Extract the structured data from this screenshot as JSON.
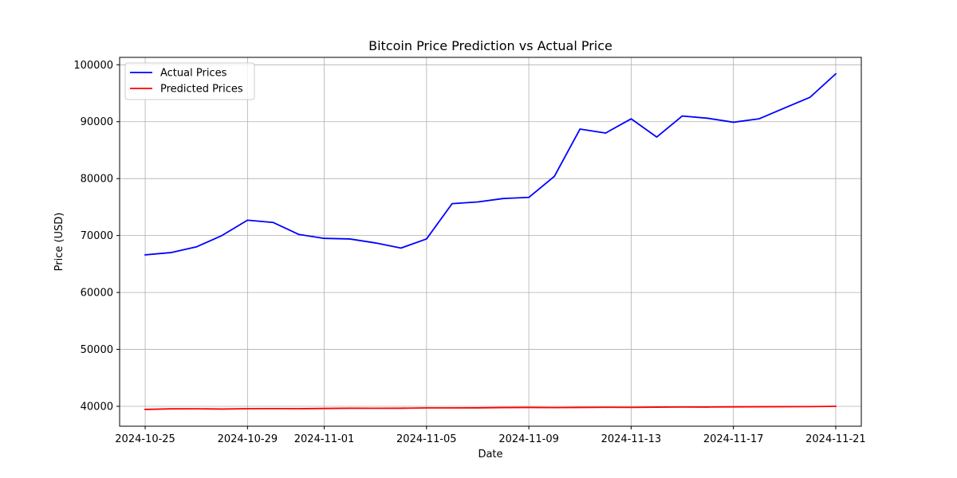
{
  "chart_data": {
    "type": "line",
    "title": "Bitcoin Price Prediction vs Actual Price",
    "xlabel": "Date",
    "ylabel": "Price (USD)",
    "x": [
      "2024-10-25",
      "2024-10-26",
      "2024-10-27",
      "2024-10-28",
      "2024-10-29",
      "2024-10-30",
      "2024-10-31",
      "2024-11-01",
      "2024-11-02",
      "2024-11-03",
      "2024-11-04",
      "2024-11-05",
      "2024-11-06",
      "2024-11-07",
      "2024-11-08",
      "2024-11-09",
      "2024-11-10",
      "2024-11-11",
      "2024-11-12",
      "2024-11-13",
      "2024-11-14",
      "2024-11-15",
      "2024-11-16",
      "2024-11-17",
      "2024-11-18",
      "2024-11-19",
      "2024-11-20",
      "2024-11-21"
    ],
    "x_ticks": [
      "2024-10-25",
      "2024-10-29",
      "2024-11-01",
      "2024-11-05",
      "2024-11-09",
      "2024-11-13",
      "2024-11-17",
      "2024-11-21"
    ],
    "xlim": [
      "2024-10-24",
      "2024-11-22"
    ],
    "ylim": [
      36500,
      101300
    ],
    "y_ticks": [
      40000,
      50000,
      60000,
      70000,
      80000,
      90000,
      100000
    ],
    "grid": true,
    "legend": "top-left",
    "series": [
      {
        "name": "Actual Prices",
        "color": "#0000ff",
        "values": [
          66600,
          67000,
          68000,
          70000,
          72700,
          72300,
          70200,
          69500,
          69400,
          68700,
          67800,
          69400,
          75600,
          75900,
          76500,
          76700,
          80400,
          88700,
          88000,
          90500,
          87300,
          91000,
          90600,
          89900,
          90500,
          92400,
          94300,
          98400
        ]
      },
      {
        "name": "Predicted Prices",
        "color": "#ff0000",
        "values": [
          39450,
          39550,
          39560,
          39520,
          39580,
          39600,
          39580,
          39620,
          39660,
          39650,
          39660,
          39720,
          39720,
          39730,
          39780,
          39800,
          39770,
          39800,
          39820,
          39810,
          39850,
          39880,
          39870,
          39900,
          39920,
          39940,
          39950,
          40000
        ]
      }
    ]
  }
}
